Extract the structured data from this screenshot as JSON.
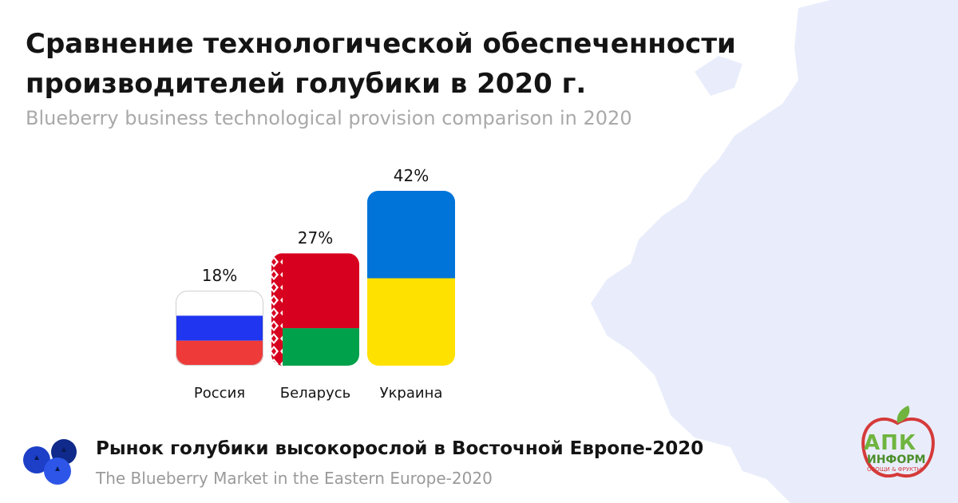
{
  "header": {
    "title": "Сравнение технологической обеспеченности производителей голубики в 2020 г.",
    "subtitle": "Blueberry business technological provision comparison in 2020"
  },
  "chart_data": {
    "type": "bar",
    "categories": [
      "Россия",
      "Беларусь",
      "Украина"
    ],
    "values": [
      18,
      27,
      42
    ],
    "value_labels": [
      "18%",
      "27%",
      "42%"
    ],
    "unit": "%",
    "title": "Сравнение технологической обеспеченности производителей голубики в 2020 г.",
    "subtitle": "Blueberry business technological provision comparison in 2020",
    "xlabel": "",
    "ylabel": "",
    "ylim": [
      0,
      45
    ],
    "grid": false,
    "legend": "none",
    "bar_fills": [
      "flag-russia",
      "flag-belarus",
      "flag-ukraine"
    ]
  },
  "colors": {
    "russia_white": "#ffffff",
    "russia_blue": "#1f35ef",
    "russia_red": "#ef3a3a",
    "belarus_red": "#d7001f",
    "belarus_green": "#00a14b",
    "ukraine_blue": "#0074d9",
    "ukraine_yellow": "#ffe100",
    "map": "#e9edfb",
    "title": "#141414",
    "subtitle": "#a9a9a9"
  },
  "footer": {
    "title": "Рынок голубики высокорослой в Восточной Европе-2020",
    "subtitle": "The Blueberry Market in the Eastern Europe-2020",
    "icon": "blueberries-icon"
  },
  "logo": {
    "name": "АПК",
    "line1": "ИНФОРМ",
    "line2": "ОВОЩИ & ФРУКТЫ",
    "icon": "apple-logo-icon"
  }
}
